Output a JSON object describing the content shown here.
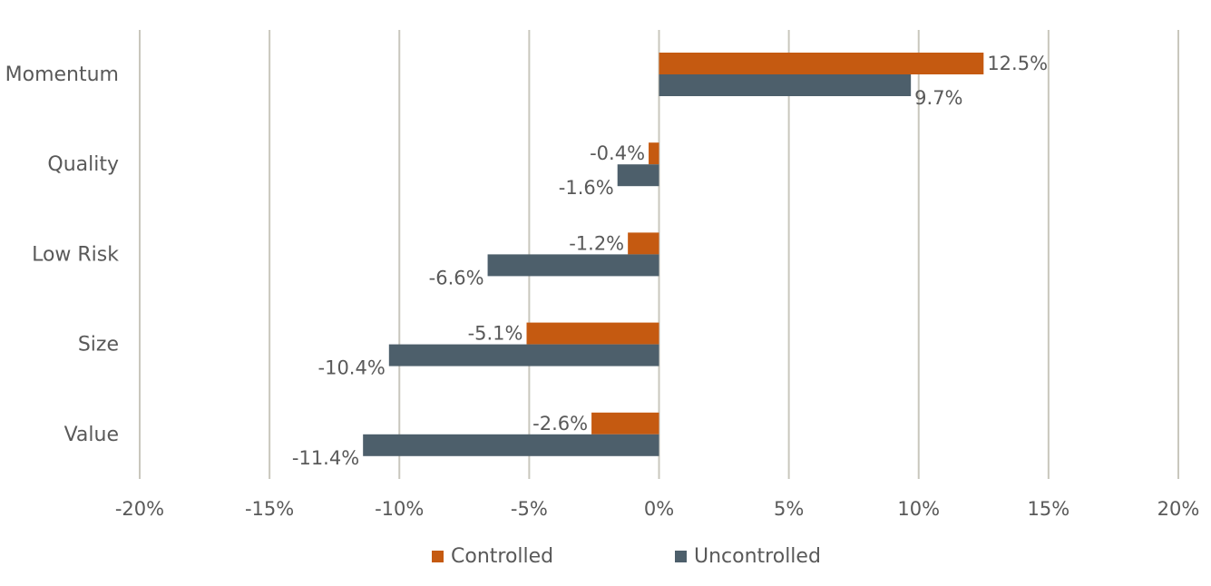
{
  "chart_data": {
    "type": "bar",
    "orientation": "horizontal",
    "categories": [
      "Momentum",
      "Quality",
      "Low Risk",
      "Size",
      "Value"
    ],
    "series": [
      {
        "name": "Controlled",
        "values": [
          12.5,
          -0.4,
          -1.2,
          -5.1,
          -2.6
        ],
        "color": "#c55a11"
      },
      {
        "name": "Uncontrolled",
        "values": [
          9.7,
          -1.6,
          -6.6,
          -10.4,
          -11.4
        ],
        "color": "#4d5f6b"
      }
    ],
    "xlim": [
      -20,
      20
    ],
    "xticks": [
      "-20%",
      "-15%",
      "-10%",
      "-5%",
      "0%",
      "5%",
      "10%",
      "15%",
      "20%"
    ],
    "data_labels": [
      [
        "12.5%",
        "-0.4%",
        "-1.2%",
        "-5.1%",
        "-2.6%"
      ],
      [
        "9.7%",
        "-1.6%",
        "-6.6%",
        "-10.4%",
        "-11.4%"
      ]
    ],
    "grid": "vertical",
    "legend_position": "bottom",
    "title": "",
    "xlabel": "",
    "ylabel": ""
  },
  "legend": {
    "items": [
      "Controlled",
      "Uncontrolled"
    ]
  }
}
